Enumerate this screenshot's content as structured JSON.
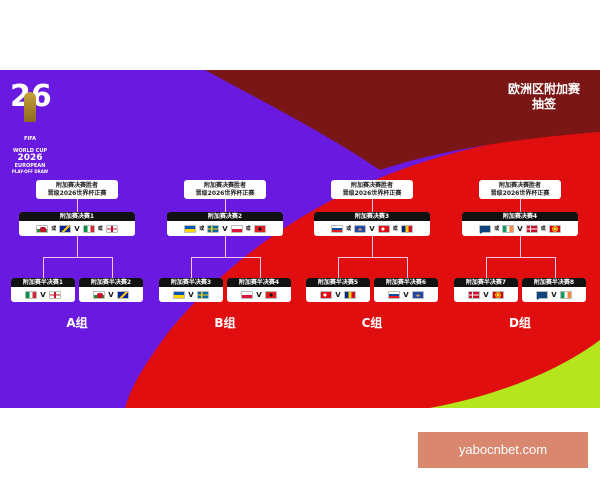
{
  "title": {
    "line1": "欧洲区附加赛",
    "line2": "抽签"
  },
  "logo": {
    "number": "26",
    "fifa": "FIFA",
    "l1": "WORLD CUP",
    "l2": "2026",
    "l3": "EUROPEAN",
    "l4": "PLAY-OFF DRAW"
  },
  "colors": {
    "purple": "#6a1ae0",
    "red": "#e00e0e",
    "maroon": "#7a1616",
    "lime": "#b5e61d"
  },
  "winner_text": {
    "line1": "附加赛决赛胜者",
    "line2": "晋级2026世界杯正赛"
  },
  "or": "或",
  "vs": "V",
  "groups": [
    {
      "label": "A组",
      "final": {
        "title": "附加赛决赛1",
        "left": [
          "wales",
          "bosnia"
        ],
        "right": [
          "italy",
          "nireland"
        ]
      },
      "semis": [
        {
          "title": "附加赛半决赛1",
          "home": "italy",
          "away": "nireland"
        },
        {
          "title": "附加赛半决赛2",
          "home": "wales",
          "away": "bosnia"
        }
      ]
    },
    {
      "label": "B组",
      "final": {
        "title": "附加赛决赛2",
        "left": [
          "ukraine",
          "sweden"
        ],
        "right": [
          "poland",
          "albania"
        ]
      },
      "semis": [
        {
          "title": "附加赛半决赛3",
          "home": "ukraine",
          "away": "sweden"
        },
        {
          "title": "附加赛半决赛4",
          "home": "poland",
          "away": "albania"
        }
      ]
    },
    {
      "label": "C组",
      "final": {
        "title": "附加赛决赛3",
        "left": [
          "slovakia",
          "kosovo"
        ],
        "right": [
          "turkey",
          "romania"
        ]
      },
      "semis": [
        {
          "title": "附加赛半决赛5",
          "home": "turkey",
          "away": "romania"
        },
        {
          "title": "附加赛半决赛6",
          "home": "slovakia",
          "away": "kosovo"
        }
      ]
    },
    {
      "label": "D组",
      "final": {
        "title": "附加赛决赛4",
        "left": [
          "czechia",
          "ireland"
        ],
        "right": [
          "denmark",
          "nmacedonia"
        ]
      },
      "semis": [
        {
          "title": "附加赛半决赛7",
          "home": "denmark",
          "away": "nmacedonia"
        },
        {
          "title": "附加赛半决赛8",
          "home": "czechia",
          "away": "ireland"
        }
      ]
    }
  ],
  "watermark": "yabocnbet.com"
}
